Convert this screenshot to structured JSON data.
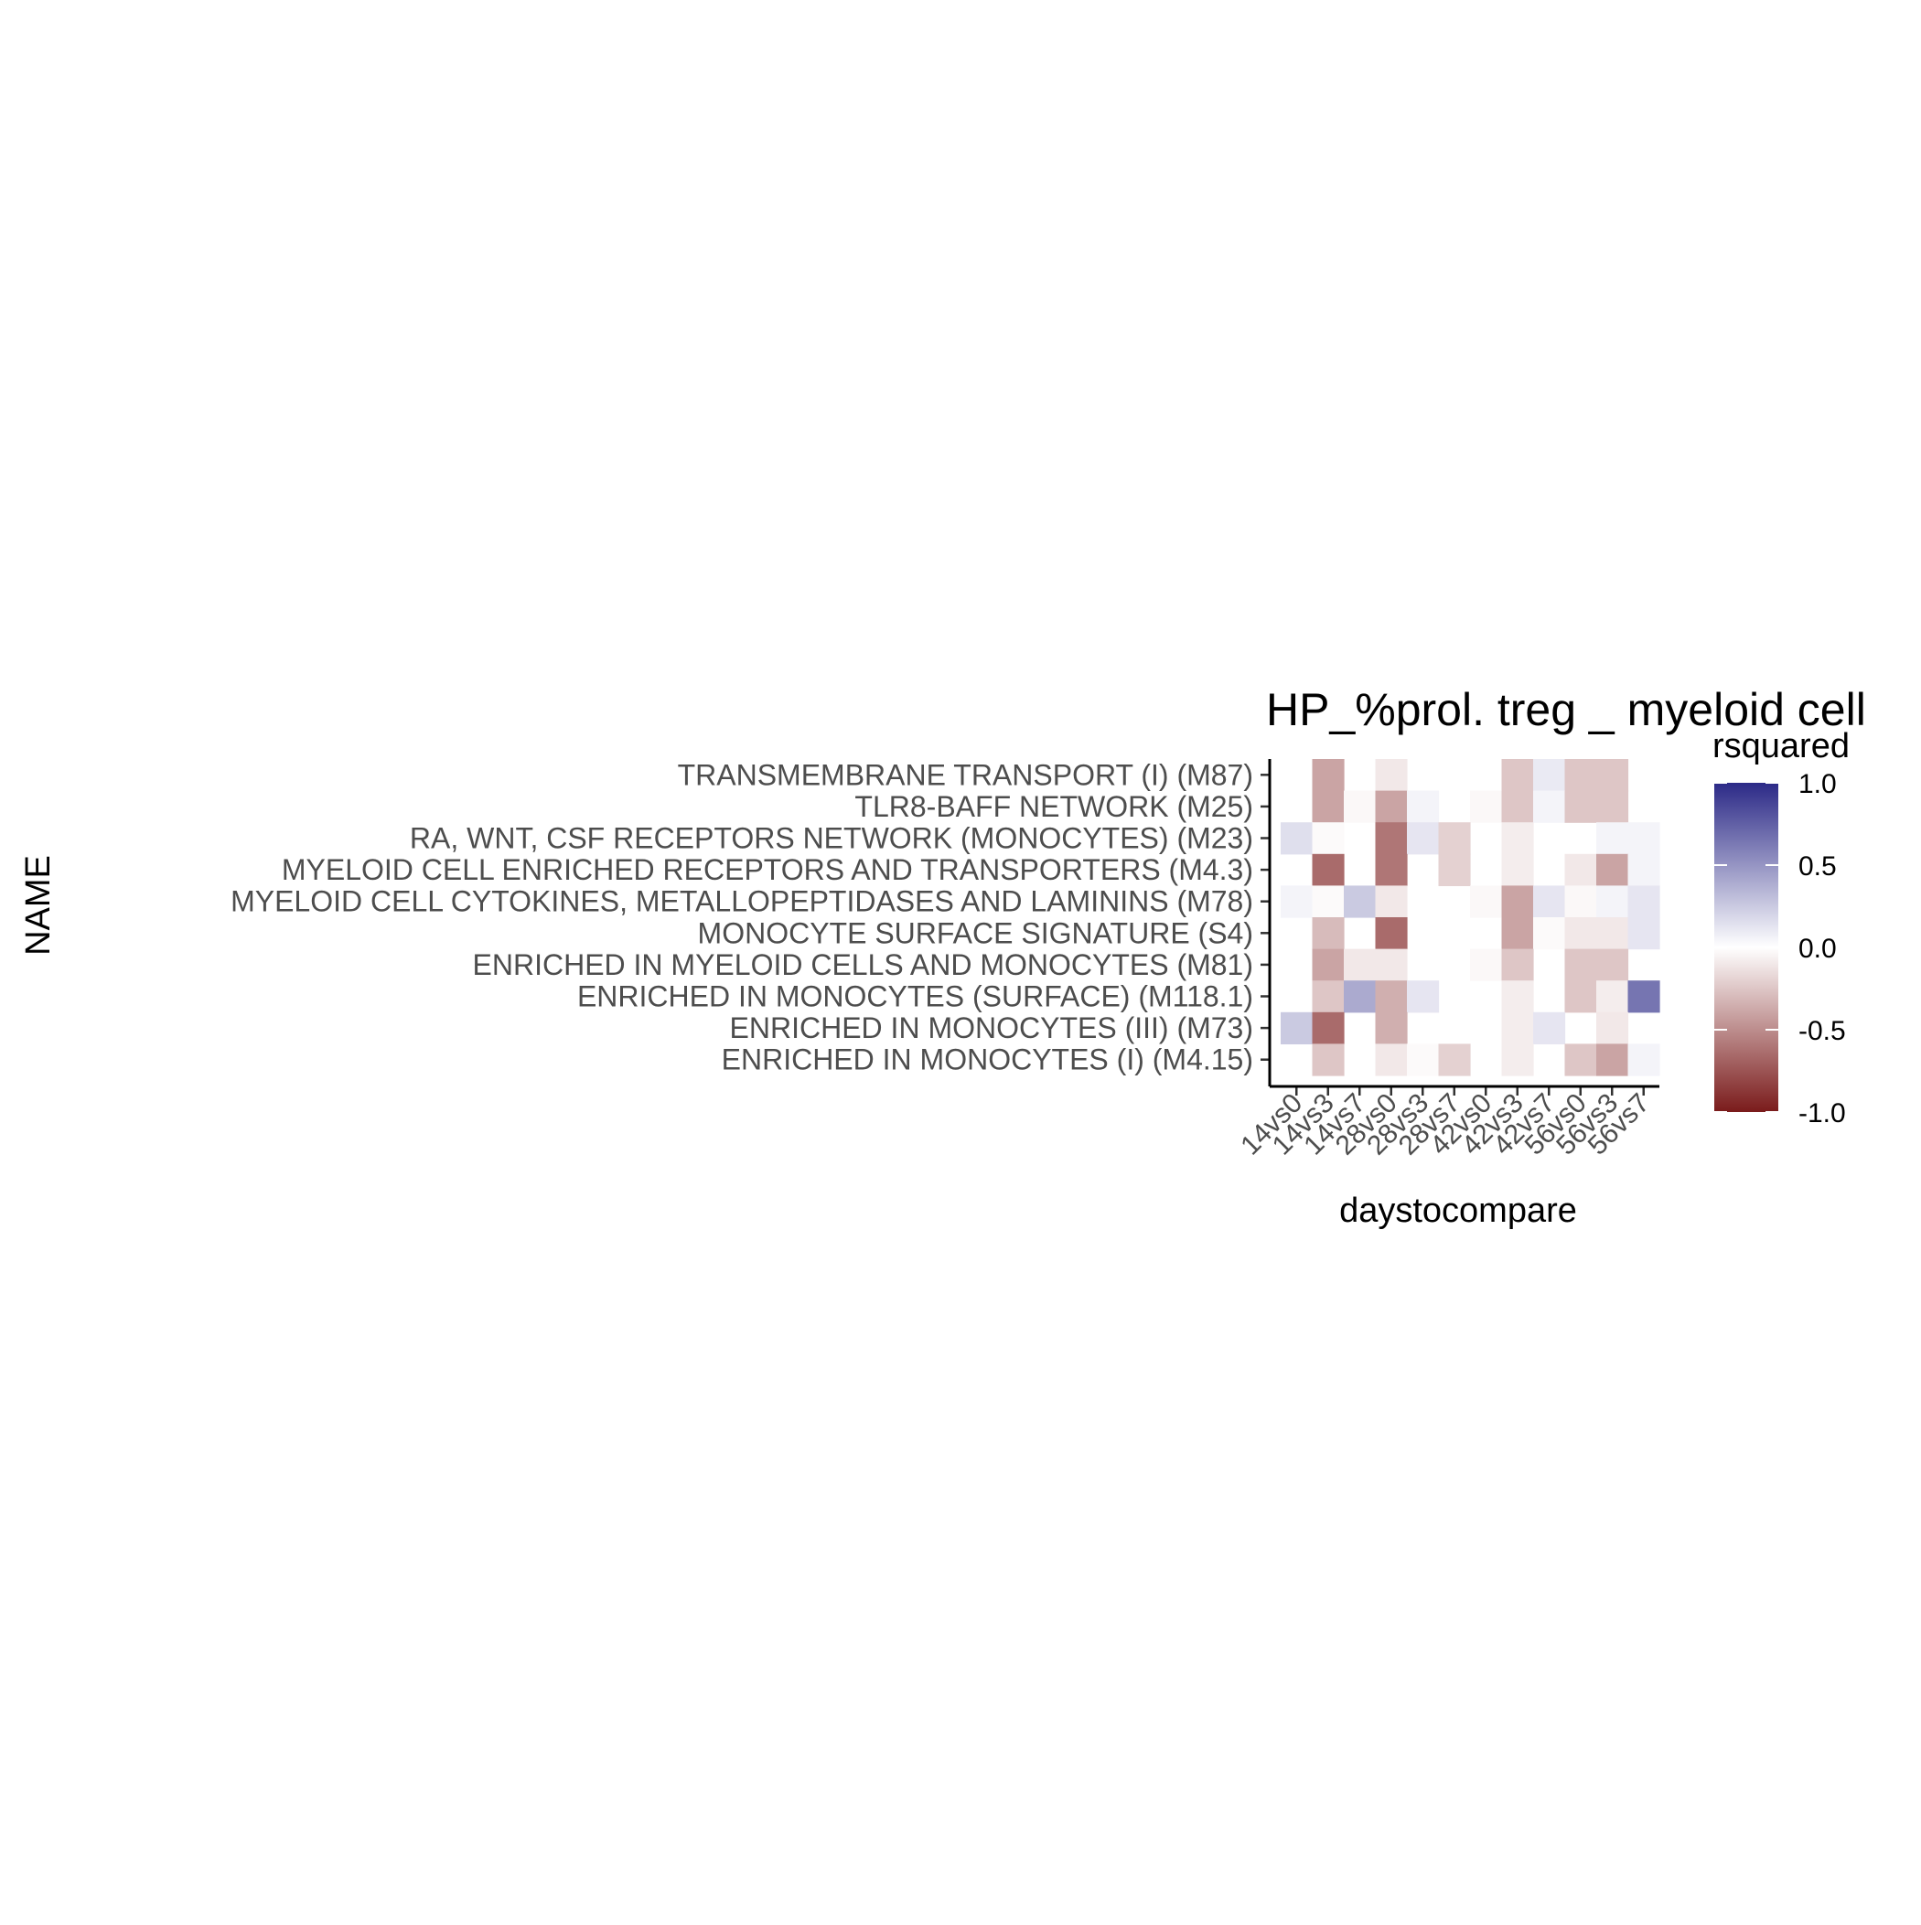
{
  "chart_data": {
    "type": "heatmap",
    "title": "HP_%prol. treg _ myeloid cell",
    "xlabel": "daystocompare",
    "ylabel": "NAME",
    "x_categories": [
      "14vs0",
      "14vs3",
      "14vs7",
      "28vs0",
      "28vs3",
      "28vs7",
      "42vs0",
      "42vs3",
      "42vs7",
      "56vs0",
      "56vs3",
      "56vs7"
    ],
    "y_categories": [
      "TRANSMEMBRANE TRANSPORT (I) (M87)",
      "TLR8-BAFF NETWORK (M25)",
      "RA, WNT, CSF RECEPTORS NETWORK (MONOCYTES) (M23)",
      "MYELOID CELL ENRICHED RECEPTORS AND TRANSPORTERS (M4.3)",
      "MYELOID CELL CYTOKINES, METALLOPEPTIDASES AND LAMININS (M78)",
      "MONOCYTE SURFACE SIGNATURE (S4)",
      "ENRICHED IN MYELOID CELLS AND MONOCYTES (M81)",
      "ENRICHED IN MONOCYTES (SURFACE) (M118.1)",
      "ENRICHED IN MONOCYTES (III) (M73)",
      "ENRICHED IN MONOCYTES (I) (M4.15)"
    ],
    "values": [
      [
        null,
        -0.4,
        null,
        -0.1,
        null,
        null,
        null,
        -0.25,
        0.1,
        -0.25,
        -0.25,
        null
      ],
      [
        null,
        -0.4,
        -0.03,
        -0.4,
        0.05,
        null,
        -0.03,
        -0.25,
        0.05,
        -0.25,
        -0.25,
        null
      ],
      [
        0.15,
        -0.02,
        null,
        -0.6,
        0.12,
        -0.2,
        null,
        -0.08,
        null,
        null,
        0.05,
        0.05
      ],
      [
        null,
        -0.65,
        null,
        -0.6,
        null,
        -0.2,
        null,
        -0.08,
        null,
        -0.1,
        -0.4,
        0.05
      ],
      [
        0.05,
        -0.02,
        0.25,
        -0.1,
        null,
        null,
        -0.03,
        -0.4,
        0.12,
        -0.03,
        0.05,
        0.12
      ],
      [
        null,
        -0.3,
        null,
        -0.65,
        null,
        null,
        null,
        -0.4,
        -0.02,
        -0.1,
        -0.1,
        0.12
      ],
      [
        null,
        -0.4,
        -0.1,
        -0.1,
        null,
        null,
        -0.03,
        -0.25,
        null,
        -0.25,
        -0.25,
        null
      ],
      [
        null,
        -0.25,
        0.4,
        -0.35,
        0.12,
        null,
        null,
        -0.08,
        null,
        -0.25,
        -0.08,
        0.65
      ],
      [
        0.25,
        -0.65,
        null,
        -0.35,
        null,
        null,
        null,
        -0.08,
        0.12,
        null,
        -0.1,
        null
      ],
      [
        null,
        -0.25,
        null,
        -0.1,
        -0.02,
        -0.2,
        null,
        -0.08,
        null,
        -0.25,
        -0.4,
        0.05
      ]
    ],
    "legend": {
      "title": "rsquared",
      "ticks": [
        "1.0",
        "0.5",
        "0.0",
        "-0.5",
        "-1.0"
      ],
      "range": [
        -1.0,
        1.0
      ],
      "colors": {
        "high": "#2c2a87",
        "mid": "#ffffff",
        "low": "#7a1b1b"
      }
    },
    "grid": false,
    "legend_placement": "right"
  }
}
